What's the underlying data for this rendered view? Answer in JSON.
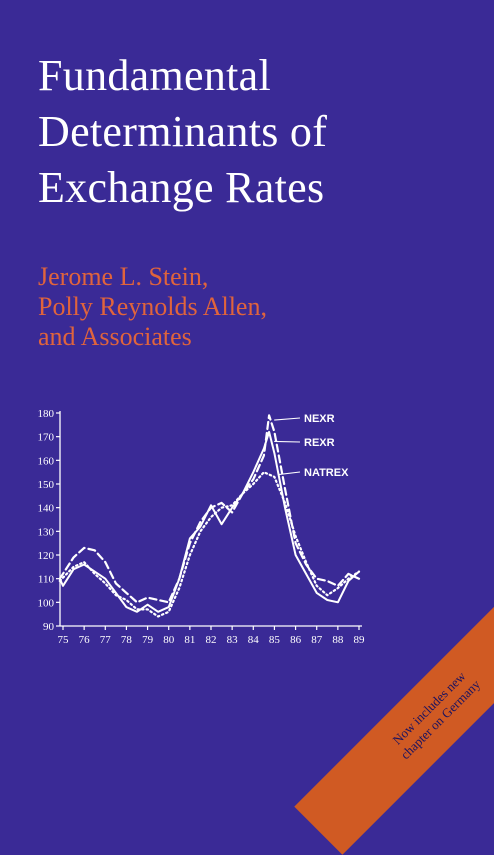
{
  "cover": {
    "title_lines": [
      "Fundamental",
      "Determinants of",
      "Exchange Rates"
    ],
    "author_lines": [
      "Jerome L. Stein,",
      "Polly Reynolds Allen,",
      "and Associates"
    ],
    "banner_lines": [
      "Now includes new",
      "chapter on Germany"
    ]
  },
  "colors": {
    "background": "#3a2a96",
    "title": "#ffffff",
    "authors": "#e0643c",
    "banner": "#d05a23",
    "chart_lines": "#ffffff"
  },
  "chart_data": {
    "type": "line",
    "title": "",
    "xlabel": "",
    "ylabel": "",
    "xlim": [
      75,
      89
    ],
    "ylim": [
      90,
      180
    ],
    "x_ticks": [
      "75",
      "76",
      "77",
      "78",
      "79",
      "80",
      "81",
      "82",
      "83",
      "84",
      "85",
      "86",
      "87",
      "88",
      "89"
    ],
    "y_ticks": [
      90,
      100,
      110,
      120,
      130,
      140,
      150,
      160,
      170,
      180
    ],
    "grid": false,
    "series": [
      {
        "name": "NEXR",
        "style": "dashed",
        "points": [
          [
            74.85,
            110
          ],
          [
            75.5,
            119
          ],
          [
            76,
            123
          ],
          [
            76.5,
            122
          ],
          [
            77,
            117
          ],
          [
            77.5,
            108
          ],
          [
            78,
            104
          ],
          [
            78.5,
            100
          ],
          [
            79,
            102
          ],
          [
            79.5,
            101
          ],
          [
            80,
            100
          ],
          [
            80.5,
            110
          ],
          [
            81,
            125
          ],
          [
            81.5,
            134
          ],
          [
            82,
            140
          ],
          [
            82.5,
            142
          ],
          [
            83,
            138
          ],
          [
            83.5,
            146
          ],
          [
            84,
            152
          ],
          [
            84.5,
            162
          ],
          [
            84.75,
            179
          ],
          [
            85,
            172
          ],
          [
            85.5,
            148
          ],
          [
            86,
            125
          ],
          [
            86.5,
            116
          ],
          [
            87,
            110
          ],
          [
            87.5,
            109
          ],
          [
            88,
            107
          ],
          [
            88.5,
            112
          ],
          [
            89,
            110
          ]
        ]
      },
      {
        "name": "REXR",
        "style": "solid",
        "points": [
          [
            74.85,
            110
          ],
          [
            75,
            107
          ],
          [
            75.5,
            114
          ],
          [
            76,
            116
          ],
          [
            76.5,
            113
          ],
          [
            77,
            110
          ],
          [
            77.5,
            104
          ],
          [
            78,
            98
          ],
          [
            78.5,
            96
          ],
          [
            79,
            99
          ],
          [
            79.5,
            96
          ],
          [
            80,
            98
          ],
          [
            80.5,
            110
          ],
          [
            81,
            127
          ],
          [
            81.5,
            132
          ],
          [
            82,
            141
          ],
          [
            82.5,
            133
          ],
          [
            83,
            140
          ],
          [
            83.5,
            146
          ],
          [
            84,
            155
          ],
          [
            84.5,
            165
          ],
          [
            84.75,
            172
          ],
          [
            85,
            163
          ],
          [
            85.5,
            140
          ],
          [
            86,
            120
          ],
          [
            86.5,
            112
          ],
          [
            87,
            104
          ],
          [
            87.5,
            101
          ],
          [
            88,
            100
          ],
          [
            88.5,
            109
          ],
          [
            89,
            113
          ]
        ]
      },
      {
        "name": "NATREX",
        "style": "dotted",
        "points": [
          [
            74.85,
            109
          ],
          [
            75.5,
            115
          ],
          [
            76,
            117
          ],
          [
            76.5,
            112
          ],
          [
            77,
            108
          ],
          [
            77.5,
            103
          ],
          [
            78,
            101
          ],
          [
            78.5,
            97
          ],
          [
            79,
            97
          ],
          [
            79.5,
            94
          ],
          [
            80,
            96
          ],
          [
            80.5,
            106
          ],
          [
            81,
            120
          ],
          [
            81.5,
            130
          ],
          [
            82,
            136
          ],
          [
            82.5,
            140
          ],
          [
            83,
            141
          ],
          [
            83.5,
            146
          ],
          [
            84,
            150
          ],
          [
            84.5,
            155
          ],
          [
            85,
            153
          ],
          [
            85.5,
            142
          ],
          [
            86,
            128
          ],
          [
            86.5,
            117
          ],
          [
            87,
            107
          ],
          [
            87.5,
            103
          ],
          [
            88,
            106
          ],
          [
            88.5,
            110
          ],
          [
            89,
            113
          ]
        ]
      }
    ]
  }
}
